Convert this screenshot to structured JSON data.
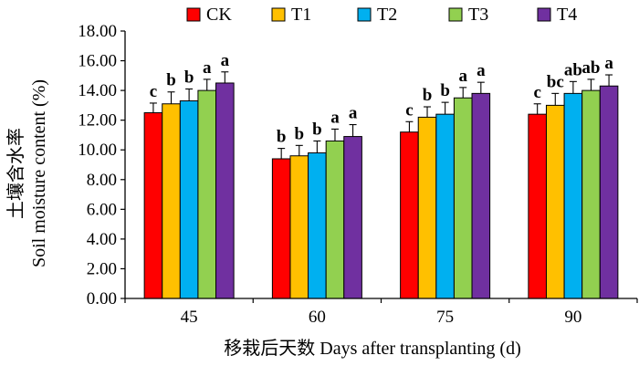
{
  "chart_data": {
    "type": "bar",
    "xlabel": "移栽后天数 Days after transplanting (d)",
    "ylabel_cn": "土壤含水率",
    "ylabel_en": "Soil moisture content (%)",
    "categories": [
      "45",
      "60",
      "75",
      "90"
    ],
    "ylim": [
      0,
      18
    ],
    "yticks": [
      "0.00",
      "2.00",
      "4.00",
      "6.00",
      "8.00",
      "10.00",
      "12.00",
      "14.00",
      "16.00",
      "18.00"
    ],
    "grid": false,
    "legend_position": "top",
    "series": [
      {
        "name": "CK",
        "color": "#ff0000",
        "values": [
          12.5,
          9.4,
          11.2,
          12.4
        ],
        "errors": [
          0.65,
          0.7,
          0.7,
          0.7
        ],
        "labels": [
          "c",
          "b",
          "c",
          "c"
        ]
      },
      {
        "name": "T1",
        "color": "#ffc000",
        "values": [
          13.1,
          9.6,
          12.2,
          13.0
        ],
        "errors": [
          0.8,
          0.7,
          0.7,
          0.8
        ],
        "labels": [
          "b",
          "b",
          "b",
          "bc"
        ]
      },
      {
        "name": "T2",
        "color": "#00b0f0",
        "values": [
          13.3,
          9.8,
          12.4,
          13.8
        ],
        "errors": [
          0.8,
          0.8,
          0.8,
          0.8
        ],
        "labels": [
          "b",
          "b",
          "b",
          "ab"
        ]
      },
      {
        "name": "T3",
        "color": "#92d050",
        "values": [
          14.0,
          10.6,
          13.5,
          14.0
        ],
        "errors": [
          0.75,
          0.8,
          0.7,
          0.75
        ],
        "labels": [
          "a",
          "a",
          "a",
          "ab"
        ]
      },
      {
        "name": "T4",
        "color": "#7030a0",
        "values": [
          14.5,
          10.9,
          13.8,
          14.3
        ],
        "errors": [
          0.75,
          0.8,
          0.75,
          0.75
        ],
        "labels": [
          "a",
          "a",
          "a",
          "a"
        ]
      }
    ]
  }
}
